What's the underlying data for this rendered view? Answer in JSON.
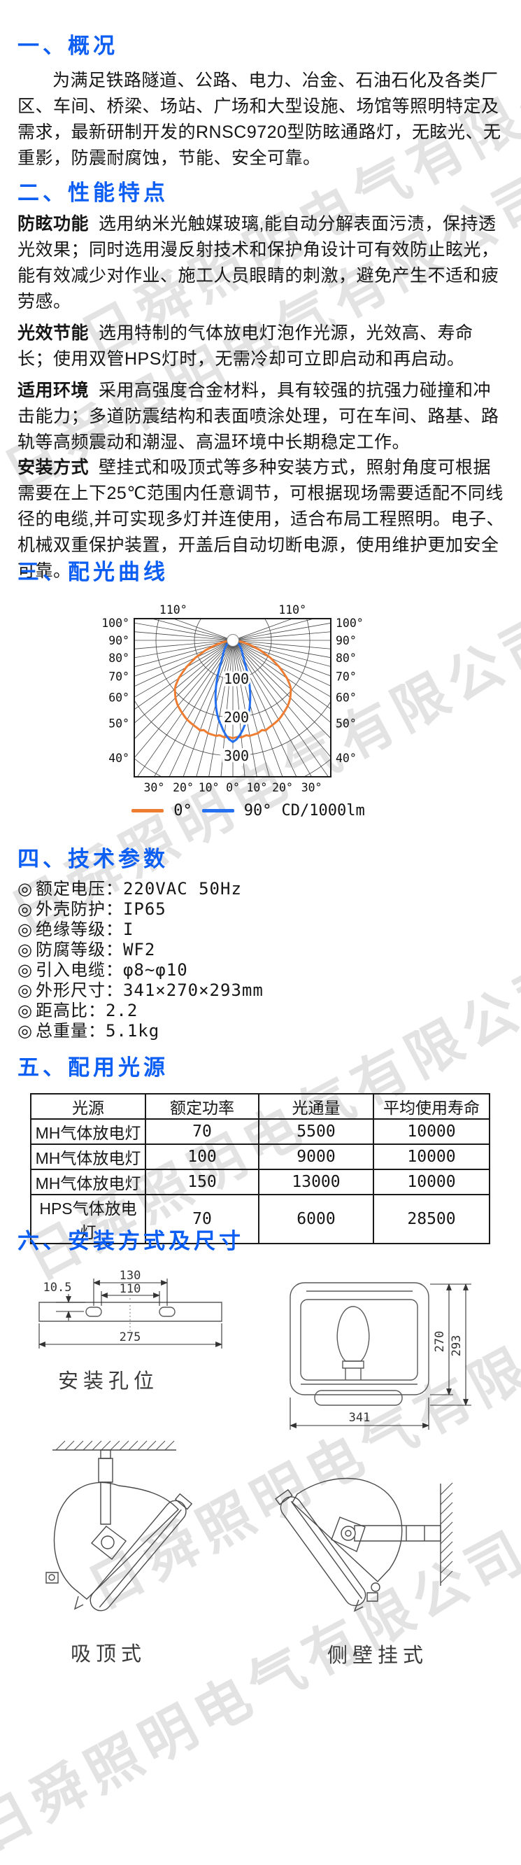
{
  "page": {
    "bg": "#ffffff",
    "accent": "#0d5ef2",
    "text_color": "#161616",
    "watermark_text": "日舜照明电气有限公司",
    "watermark_color": "#e3e3e3"
  },
  "s1": {
    "heading": "一、概况",
    "body": "为满足铁路隧道、公路、电力、冶金、石油石化及各类厂区、车间、桥梁、场站、广场和大型设施、场馆等照明特定及需求，最新研制开发的RNSC9720型防眩通路灯，无眩光、无重影，防震耐腐蚀，节能、安全可靠。"
  },
  "s2": {
    "heading": "二、性能特点",
    "features": [
      {
        "label": "防眩功能",
        "text": "选用纳米光触媒玻璃,能自动分解表面污渍，保持透光效果；同时选用漫反射技术和保护角设计可有效防止眩光，能有效减少对作业、施工人员眼睛的刺激，避免产生不适和疲劳感。"
      },
      {
        "label": "光效节能",
        "text": "选用特制的气体放电灯泡作光源，光效高、寿命长；使用双管HPS灯时，无需冷却可立即启动和再启动。"
      },
      {
        "label": "适用环境",
        "text": "采用高强度合金材料，具有较强的抗强力碰撞和冲击能力；多道防震结构和表面喷涂处理，可在车间、路基、路轨等高频震动和潮湿、高温环境中长期稳定工作。"
      },
      {
        "label": "安装方式",
        "text": "壁挂式和吸顶式等多种安装方式，照射角度可根据需要在上下25℃范围内任意调节，可根据现场需要适配不同线径的电缆,并可实现多灯并连使用，适合布局工程照明。电子、机械双重保护装置，开盖后自动切断电源，使用维护更加安全可靠。"
      }
    ]
  },
  "s3": {
    "heading": "三、配光曲线"
  },
  "s4": {
    "heading": "四、技术参数",
    "bullet": "◎",
    "separator": "：",
    "params": [
      {
        "label": "额定电压",
        "value": "220VAC 50Hz"
      },
      {
        "label": "外壳防护",
        "value": "IP65"
      },
      {
        "label": "绝缘等级",
        "value": "I"
      },
      {
        "label": "防腐等级",
        "value": "WF2"
      },
      {
        "label": "引入电缆",
        "value": "φ8~φ10"
      },
      {
        "label": "外形尺寸",
        "value": "341×270×293mm"
      },
      {
        "label": "距高比",
        "value": "2.2"
      },
      {
        "label": "总重量",
        "value": "5.1kg"
      }
    ]
  },
  "s5": {
    "heading": "五、配用光源",
    "table": {
      "headers": [
        "光源",
        "额定功率",
        "光通量",
        "平均使用寿命"
      ],
      "rows": [
        [
          "MH气体放电灯",
          "70",
          "5500",
          "10000"
        ],
        [
          "MH气体放电灯",
          "100",
          "9000",
          "10000"
        ],
        [
          "MH气体放电灯",
          "150",
          "13000",
          "10000"
        ],
        [
          "HPS气体放电灯",
          "70",
          "6000",
          "28500"
        ]
      ]
    }
  },
  "s6": {
    "heading": "六、安装方式及尺寸",
    "holes": {
      "caption": "安装孔位",
      "dim_top": "130",
      "dim_mid": "110",
      "dim_left": "10.5",
      "dim_bottom": "275"
    },
    "front": {
      "dim_inner": "270",
      "dim_outer": "293",
      "dim_width": "341"
    },
    "ceiling_caption": "吸顶式",
    "wall_caption": "侧壁挂式"
  },
  "chart_data": {
    "type": "line",
    "subtype": "polar-luminous-intensity",
    "units": "CD/1000lm",
    "legend": [
      {
        "name": "0°",
        "color": "#ee7c31"
      },
      {
        "name": "90°",
        "color": "#2470f0"
      }
    ],
    "grid": {
      "radial_ticks": [
        100,
        200,
        300
      ],
      "bottom_deg": [
        -30,
        -20,
        -10,
        0,
        10,
        20,
        30
      ],
      "side_deg": [
        100,
        90,
        80,
        70,
        60,
        50,
        40
      ],
      "top_deg": [
        110
      ],
      "ray_step_deg": 5,
      "ray_max_deg": 110
    },
    "series": [
      {
        "name": "0°",
        "color": "#ee7c31",
        "points": [
          [
            -85,
            8
          ],
          [
            -80,
            25
          ],
          [
            -75,
            47
          ],
          [
            -70,
            76
          ],
          [
            -65,
            108
          ],
          [
            -60,
            140
          ],
          [
            -57,
            158
          ],
          [
            -55,
            172
          ],
          [
            -52,
            188
          ],
          [
            -50,
            197
          ],
          [
            -47,
            205
          ],
          [
            -45,
            211
          ],
          [
            -42,
            218
          ],
          [
            -40,
            222
          ],
          [
            -37,
            227
          ],
          [
            -35,
            230
          ],
          [
            -32,
            235
          ],
          [
            -30,
            238
          ],
          [
            -27,
            241
          ],
          [
            -25,
            243
          ],
          [
            -22,
            246
          ],
          [
            -20,
            249
          ],
          [
            -18,
            245
          ],
          [
            -15,
            250
          ],
          [
            -12,
            251
          ],
          [
            -10,
            252
          ],
          [
            -8,
            249
          ],
          [
            -5,
            253
          ],
          [
            -3,
            251
          ],
          [
            0,
            254
          ],
          [
            3,
            251
          ],
          [
            5,
            253
          ],
          [
            8,
            249
          ],
          [
            10,
            252
          ],
          [
            12,
            251
          ],
          [
            15,
            250
          ],
          [
            18,
            245
          ],
          [
            20,
            249
          ],
          [
            22,
            246
          ],
          [
            25,
            243
          ],
          [
            27,
            241
          ],
          [
            30,
            238
          ],
          [
            32,
            235
          ],
          [
            35,
            230
          ],
          [
            37,
            227
          ],
          [
            40,
            222
          ],
          [
            42,
            218
          ],
          [
            45,
            211
          ],
          [
            47,
            205
          ],
          [
            50,
            197
          ],
          [
            52,
            188
          ],
          [
            55,
            172
          ],
          [
            57,
            158
          ],
          [
            60,
            140
          ],
          [
            65,
            108
          ],
          [
            70,
            76
          ],
          [
            75,
            47
          ],
          [
            80,
            25
          ],
          [
            85,
            8
          ]
        ]
      },
      {
        "name": "90°",
        "color": "#2470f0",
        "points": [
          [
            -70,
            5
          ],
          [
            -65,
            9
          ],
          [
            -60,
            14
          ],
          [
            -55,
            19
          ],
          [
            -50,
            24
          ],
          [
            -45,
            30
          ],
          [
            -40,
            36
          ],
          [
            -35,
            44
          ],
          [
            -30,
            57
          ],
          [
            -28,
            66
          ],
          [
            -26,
            78
          ],
          [
            -24,
            93
          ],
          [
            -22,
            110
          ],
          [
            -20,
            128
          ],
          [
            -18,
            146
          ],
          [
            -16,
            163
          ],
          [
            -14,
            180
          ],
          [
            -13,
            188
          ],
          [
            -12,
            196
          ],
          [
            -11,
            203
          ],
          [
            -10,
            210
          ],
          [
            -8,
            222
          ],
          [
            -6,
            236
          ],
          [
            -4,
            248
          ],
          [
            -2,
            258
          ],
          [
            0,
            264
          ],
          [
            2,
            258
          ],
          [
            4,
            248
          ],
          [
            6,
            236
          ],
          [
            8,
            222
          ],
          [
            10,
            210
          ],
          [
            11,
            203
          ],
          [
            12,
            196
          ],
          [
            13,
            188
          ],
          [
            14,
            180
          ],
          [
            16,
            163
          ],
          [
            18,
            146
          ],
          [
            20,
            128
          ],
          [
            22,
            110
          ],
          [
            24,
            93
          ],
          [
            26,
            78
          ],
          [
            28,
            66
          ],
          [
            30,
            57
          ],
          [
            35,
            44
          ],
          [
            40,
            36
          ],
          [
            45,
            30
          ],
          [
            50,
            24
          ],
          [
            55,
            19
          ],
          [
            60,
            14
          ],
          [
            65,
            9
          ],
          [
            70,
            5
          ]
        ]
      }
    ]
  }
}
